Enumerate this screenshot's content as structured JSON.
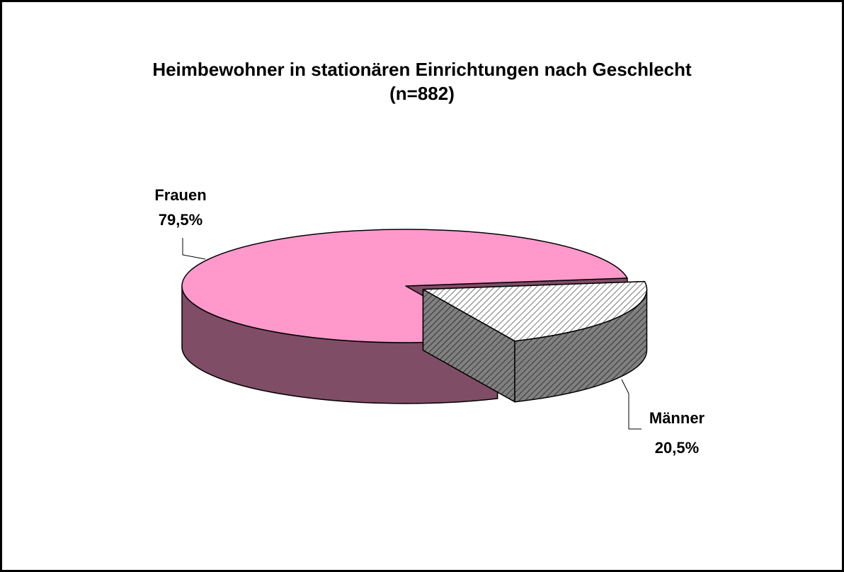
{
  "chart_data": {
    "type": "pie3d",
    "title": "Heimbewohner in stationären Einrichtungen nach Geschlecht",
    "subtitle": "(n=882)",
    "categories": [
      "Frauen",
      "Männer"
    ],
    "values": [
      79.5,
      20.5
    ],
    "value_labels": [
      "79,5%",
      "20,5%"
    ],
    "colors": [
      "#ff99cc",
      "#ffffff"
    ],
    "hatched": [
      false,
      true
    ]
  }
}
